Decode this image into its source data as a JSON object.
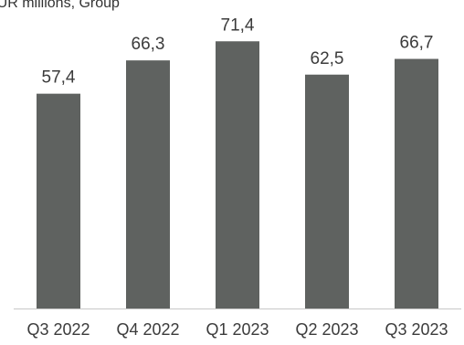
{
  "chart_data": {
    "type": "bar",
    "title": "EUR millions, Group",
    "categories": [
      "Q3 2022",
      "Q4 2022",
      "Q1 2023",
      "Q2 2023",
      "Q3 2023"
    ],
    "values": [
      57.4,
      66.3,
      71.4,
      62.5,
      66.7
    ],
    "value_labels": [
      "57,4",
      "66,3",
      "71,4",
      "62,5",
      "66,7"
    ],
    "xlabel": "",
    "ylabel": "",
    "ylim": [
      0,
      80
    ],
    "grid": false,
    "legend": "none",
    "colors": {
      "bar": "#5f6260",
      "axis": "#c8c8c8",
      "text": "#3b3b3b"
    }
  }
}
